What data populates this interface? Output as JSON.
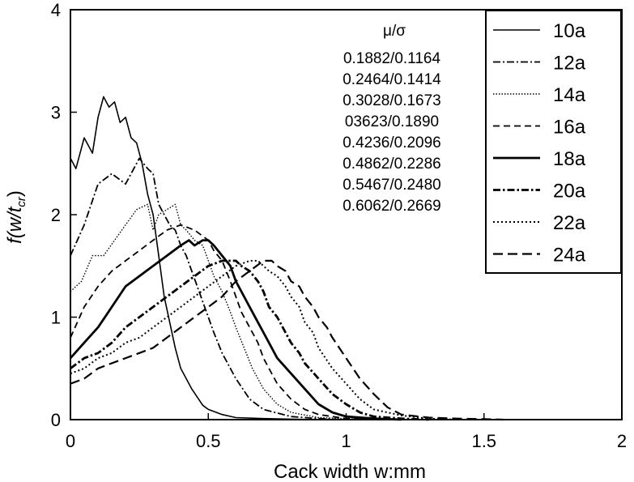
{
  "chart_data": {
    "type": "line",
    "xlabel": "Cack width w:mm",
    "ylabel": "f(w/t",
    "ylabel_sub": "cr",
    "ylabel_close": ")",
    "xlim": [
      0,
      2
    ],
    "ylim": [
      0,
      4
    ],
    "xticks": [
      0,
      0.5,
      1,
      1.5,
      2
    ],
    "xtick_labels": [
      "0",
      "0.5",
      "1",
      "1.5",
      "2"
    ],
    "yticks": [
      0,
      1,
      2,
      3,
      4
    ],
    "ytick_labels": [
      "0",
      "1",
      "2",
      "3",
      "4"
    ],
    "grid": false,
    "legend_position": "top-right",
    "annotation": {
      "title": "μ/σ",
      "lines": [
        "0.1882/0.1164",
        "0.2464/0.1414",
        "0.3028/0.1673",
        "03623/0.1890",
        "0.4236/0.2096",
        "0.4862/0.2286",
        "0.5467/0.2480",
        "0.6062/0.2669"
      ]
    },
    "series": [
      {
        "name": "10a",
        "style": "solid-thin",
        "x": [
          0,
          0.02,
          0.05,
          0.08,
          0.1,
          0.12,
          0.14,
          0.16,
          0.18,
          0.2,
          0.22,
          0.24,
          0.26,
          0.28,
          0.3,
          0.32,
          0.34,
          0.36,
          0.38,
          0.4,
          0.42,
          0.44,
          0.46,
          0.48,
          0.5,
          0.55,
          0.6,
          0.7,
          0.8,
          0.9
        ],
        "y": [
          2.55,
          2.45,
          2.75,
          2.6,
          2.95,
          3.15,
          3.05,
          3.1,
          2.9,
          2.95,
          2.75,
          2.7,
          2.5,
          2.2,
          2.0,
          1.6,
          1.2,
          0.95,
          0.7,
          0.5,
          0.4,
          0.3,
          0.22,
          0.14,
          0.1,
          0.05,
          0.02,
          0.01,
          0.005,
          0
        ]
      },
      {
        "name": "12a",
        "style": "dash-dot",
        "x": [
          0,
          0.05,
          0.1,
          0.15,
          0.2,
          0.25,
          0.28,
          0.3,
          0.32,
          0.34,
          0.36,
          0.38,
          0.4,
          0.42,
          0.44,
          0.46,
          0.48,
          0.5,
          0.52,
          0.55,
          0.6,
          0.65,
          0.7,
          0.8,
          0.9,
          1.0
        ],
        "y": [
          1.6,
          1.9,
          2.3,
          2.4,
          2.3,
          2.55,
          2.45,
          2.4,
          2.1,
          2.0,
          1.9,
          1.85,
          1.7,
          1.6,
          1.45,
          1.3,
          1.15,
          1.0,
          0.85,
          0.65,
          0.4,
          0.2,
          0.1,
          0.03,
          0.01,
          0
        ]
      },
      {
        "name": "14a",
        "style": "dotted-fine",
        "x": [
          0,
          0.04,
          0.08,
          0.12,
          0.16,
          0.2,
          0.24,
          0.28,
          0.3,
          0.32,
          0.35,
          0.38,
          0.4,
          0.42,
          0.45,
          0.48,
          0.5,
          0.52,
          0.55,
          0.58,
          0.6,
          0.63,
          0.66,
          0.7,
          0.75,
          0.8,
          0.9,
          1.0,
          1.1
        ],
        "y": [
          1.25,
          1.35,
          1.6,
          1.6,
          1.75,
          1.9,
          2.05,
          2.1,
          1.85,
          2.0,
          2.05,
          2.1,
          1.9,
          1.85,
          1.75,
          1.7,
          1.55,
          1.4,
          1.25,
          1.05,
          0.9,
          0.7,
          0.5,
          0.3,
          0.15,
          0.07,
          0.02,
          0.01,
          0
        ]
      },
      {
        "name": "16a",
        "style": "dashed",
        "x": [
          0,
          0.05,
          0.1,
          0.15,
          0.2,
          0.25,
          0.3,
          0.35,
          0.4,
          0.45,
          0.5,
          0.52,
          0.55,
          0.58,
          0.6,
          0.62,
          0.65,
          0.68,
          0.7,
          0.72,
          0.75,
          0.8,
          0.85,
          0.9,
          1.0,
          1.1
        ],
        "y": [
          0.8,
          1.1,
          1.3,
          1.45,
          1.55,
          1.65,
          1.75,
          1.85,
          1.9,
          1.85,
          1.75,
          1.65,
          1.55,
          1.35,
          1.2,
          1.05,
          0.9,
          0.75,
          0.6,
          0.5,
          0.35,
          0.2,
          0.1,
          0.05,
          0.01,
          0
        ]
      },
      {
        "name": "18a",
        "style": "solid-thick",
        "x": [
          0,
          0.05,
          0.1,
          0.15,
          0.2,
          0.25,
          0.3,
          0.35,
          0.4,
          0.43,
          0.45,
          0.48,
          0.5,
          0.52,
          0.55,
          0.58,
          0.6,
          0.62,
          0.65,
          0.68,
          0.7,
          0.73,
          0.75,
          0.8,
          0.85,
          0.9,
          0.95,
          1.0,
          1.1,
          1.2
        ],
        "y": [
          0.6,
          0.75,
          0.9,
          1.1,
          1.3,
          1.4,
          1.5,
          1.6,
          1.7,
          1.75,
          1.7,
          1.75,
          1.75,
          1.7,
          1.6,
          1.5,
          1.35,
          1.25,
          1.1,
          0.95,
          0.85,
          0.7,
          0.6,
          0.45,
          0.3,
          0.15,
          0.07,
          0.03,
          0.01,
          0
        ]
      },
      {
        "name": "20a",
        "style": "dash-dot-thick",
        "x": [
          0,
          0.05,
          0.1,
          0.15,
          0.2,
          0.25,
          0.3,
          0.35,
          0.4,
          0.45,
          0.5,
          0.55,
          0.6,
          0.62,
          0.65,
          0.68,
          0.7,
          0.72,
          0.75,
          0.78,
          0.8,
          0.83,
          0.85,
          0.9,
          0.95,
          1.0,
          1.05,
          1.1,
          1.2,
          1.3
        ],
        "y": [
          0.5,
          0.6,
          0.65,
          0.75,
          0.9,
          1.0,
          1.1,
          1.2,
          1.3,
          1.4,
          1.5,
          1.55,
          1.55,
          1.5,
          1.45,
          1.35,
          1.25,
          1.1,
          1.0,
          0.85,
          0.75,
          0.65,
          0.55,
          0.4,
          0.25,
          0.15,
          0.07,
          0.03,
          0.01,
          0
        ]
      },
      {
        "name": "22a",
        "style": "dotted",
        "x": [
          0,
          0.05,
          0.1,
          0.15,
          0.2,
          0.25,
          0.3,
          0.35,
          0.4,
          0.45,
          0.5,
          0.55,
          0.6,
          0.65,
          0.68,
          0.7,
          0.72,
          0.75,
          0.78,
          0.8,
          0.83,
          0.85,
          0.88,
          0.9,
          0.95,
          1.0,
          1.05,
          1.1,
          1.2,
          1.3,
          1.4
        ],
        "y": [
          0.45,
          0.5,
          0.6,
          0.65,
          0.75,
          0.8,
          0.9,
          1.0,
          1.1,
          1.2,
          1.3,
          1.4,
          1.5,
          1.55,
          1.55,
          1.5,
          1.45,
          1.4,
          1.3,
          1.2,
          1.1,
          0.95,
          0.85,
          0.7,
          0.5,
          0.35,
          0.2,
          0.1,
          0.04,
          0.01,
          0
        ]
      },
      {
        "name": "24a",
        "style": "long-dash",
        "x": [
          0,
          0.05,
          0.1,
          0.15,
          0.2,
          0.25,
          0.3,
          0.35,
          0.4,
          0.45,
          0.5,
          0.55,
          0.6,
          0.65,
          0.7,
          0.73,
          0.75,
          0.78,
          0.8,
          0.83,
          0.85,
          0.88,
          0.9,
          0.93,
          0.95,
          1.0,
          1.05,
          1.1,
          1.15,
          1.2,
          1.3,
          1.4,
          1.5,
          1.57
        ],
        "y": [
          0.35,
          0.4,
          0.5,
          0.55,
          0.6,
          0.65,
          0.7,
          0.8,
          0.9,
          1.0,
          1.1,
          1.2,
          1.35,
          1.45,
          1.55,
          1.55,
          1.5,
          1.45,
          1.35,
          1.3,
          1.2,
          1.1,
          1.0,
          0.9,
          0.8,
          0.6,
          0.4,
          0.25,
          0.12,
          0.05,
          0.02,
          0.01,
          0.005,
          0
        ]
      }
    ]
  }
}
